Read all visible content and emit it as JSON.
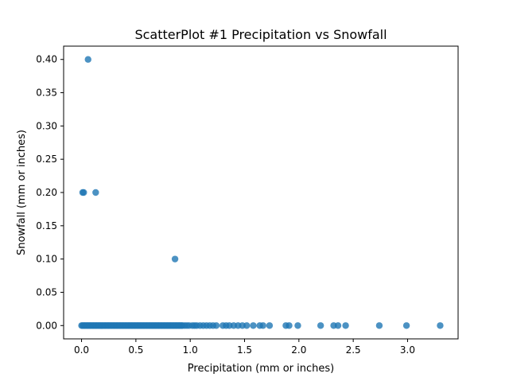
{
  "chart_data": {
    "type": "scatter",
    "title": "ScatterPlot #1 Precipitation vs Snowfall",
    "xlabel": "Precipitation (mm or inches)",
    "ylabel": "Snowfall (mm or inches)",
    "xlim": [
      -0.165,
      3.465
    ],
    "ylim": [
      -0.02,
      0.42
    ],
    "xticks": [
      0.0,
      0.5,
      1.0,
      1.5,
      2.0,
      2.5,
      3.0
    ],
    "xtick_labels": [
      "0.0",
      "0.5",
      "1.0",
      "1.5",
      "2.0",
      "2.5",
      "3.0"
    ],
    "yticks": [
      0.0,
      0.05,
      0.1,
      0.15,
      0.2,
      0.25,
      0.3,
      0.35,
      0.4
    ],
    "ytick_labels": [
      "0.00",
      "0.05",
      "0.10",
      "0.15",
      "0.20",
      "0.25",
      "0.30",
      "0.35",
      "0.40"
    ],
    "grid": false,
    "legend": "none",
    "marker_color": "#1f77b4",
    "marker_alpha": 0.8,
    "points": [
      [
        0.06,
        0.4
      ],
      [
        0.01,
        0.2
      ],
      [
        0.02,
        0.2
      ],
      [
        0.13,
        0.2
      ],
      [
        0.86,
        0.1
      ],
      [
        0.0,
        0.0
      ],
      [
        0.01,
        0.0
      ],
      [
        0.02,
        0.0
      ],
      [
        0.03,
        0.0
      ],
      [
        0.04,
        0.0
      ],
      [
        0.05,
        0.0
      ],
      [
        0.06,
        0.0
      ],
      [
        0.07,
        0.0
      ],
      [
        0.08,
        0.0
      ],
      [
        0.09,
        0.0
      ],
      [
        0.1,
        0.0
      ],
      [
        0.11,
        0.0
      ],
      [
        0.12,
        0.0
      ],
      [
        0.13,
        0.0
      ],
      [
        0.14,
        0.0
      ],
      [
        0.15,
        0.0
      ],
      [
        0.16,
        0.0
      ],
      [
        0.17,
        0.0
      ],
      [
        0.18,
        0.0
      ],
      [
        0.19,
        0.0
      ],
      [
        0.2,
        0.0
      ],
      [
        0.21,
        0.0
      ],
      [
        0.22,
        0.0
      ],
      [
        0.23,
        0.0
      ],
      [
        0.24,
        0.0
      ],
      [
        0.25,
        0.0
      ],
      [
        0.26,
        0.0
      ],
      [
        0.27,
        0.0
      ],
      [
        0.28,
        0.0
      ],
      [
        0.29,
        0.0
      ],
      [
        0.3,
        0.0
      ],
      [
        0.31,
        0.0
      ],
      [
        0.32,
        0.0
      ],
      [
        0.33,
        0.0
      ],
      [
        0.34,
        0.0
      ],
      [
        0.35,
        0.0
      ],
      [
        0.36,
        0.0
      ],
      [
        0.37,
        0.0
      ],
      [
        0.38,
        0.0
      ],
      [
        0.39,
        0.0
      ],
      [
        0.4,
        0.0
      ],
      [
        0.41,
        0.0
      ],
      [
        0.42,
        0.0
      ],
      [
        0.43,
        0.0
      ],
      [
        0.44,
        0.0
      ],
      [
        0.45,
        0.0
      ],
      [
        0.46,
        0.0
      ],
      [
        0.47,
        0.0
      ],
      [
        0.48,
        0.0
      ],
      [
        0.49,
        0.0
      ],
      [
        0.5,
        0.0
      ],
      [
        0.51,
        0.0
      ],
      [
        0.52,
        0.0
      ],
      [
        0.53,
        0.0
      ],
      [
        0.54,
        0.0
      ],
      [
        0.55,
        0.0
      ],
      [
        0.56,
        0.0
      ],
      [
        0.57,
        0.0
      ],
      [
        0.58,
        0.0
      ],
      [
        0.59,
        0.0
      ],
      [
        0.6,
        0.0
      ],
      [
        0.61,
        0.0
      ],
      [
        0.62,
        0.0
      ],
      [
        0.63,
        0.0
      ],
      [
        0.64,
        0.0
      ],
      [
        0.65,
        0.0
      ],
      [
        0.66,
        0.0
      ],
      [
        0.67,
        0.0
      ],
      [
        0.68,
        0.0
      ],
      [
        0.69,
        0.0
      ],
      [
        0.7,
        0.0
      ],
      [
        0.71,
        0.0
      ],
      [
        0.72,
        0.0
      ],
      [
        0.73,
        0.0
      ],
      [
        0.74,
        0.0
      ],
      [
        0.75,
        0.0
      ],
      [
        0.76,
        0.0
      ],
      [
        0.77,
        0.0
      ],
      [
        0.78,
        0.0
      ],
      [
        0.79,
        0.0
      ],
      [
        0.8,
        0.0
      ],
      [
        0.81,
        0.0
      ],
      [
        0.82,
        0.0
      ],
      [
        0.83,
        0.0
      ],
      [
        0.84,
        0.0
      ],
      [
        0.85,
        0.0
      ],
      [
        0.86,
        0.0
      ],
      [
        0.87,
        0.0
      ],
      [
        0.88,
        0.0
      ],
      [
        0.89,
        0.0
      ],
      [
        0.9,
        0.0
      ],
      [
        0.91,
        0.0
      ],
      [
        0.92,
        0.0
      ],
      [
        0.93,
        0.0
      ],
      [
        0.95,
        0.0
      ],
      [
        0.97,
        0.0
      ],
      [
        0.99,
        0.0
      ],
      [
        1.02,
        0.0
      ],
      [
        1.04,
        0.0
      ],
      [
        1.06,
        0.0
      ],
      [
        1.09,
        0.0
      ],
      [
        1.12,
        0.0
      ],
      [
        1.15,
        0.0
      ],
      [
        1.18,
        0.0
      ],
      [
        1.21,
        0.0
      ],
      [
        1.24,
        0.0
      ],
      [
        1.3,
        0.0
      ],
      [
        1.33,
        0.0
      ],
      [
        1.36,
        0.0
      ],
      [
        1.4,
        0.0
      ],
      [
        1.44,
        0.0
      ],
      [
        1.48,
        0.0
      ],
      [
        1.52,
        0.0
      ],
      [
        1.58,
        0.0
      ],
      [
        1.64,
        0.0
      ],
      [
        1.67,
        0.0
      ],
      [
        1.73,
        0.0
      ],
      [
        1.88,
        0.0
      ],
      [
        1.91,
        0.0
      ],
      [
        1.99,
        0.0
      ],
      [
        2.2,
        0.0
      ],
      [
        2.32,
        0.0
      ],
      [
        2.36,
        0.0
      ],
      [
        2.43,
        0.0
      ],
      [
        2.74,
        0.0
      ],
      [
        2.99,
        0.0
      ],
      [
        3.3,
        0.0
      ]
    ]
  }
}
